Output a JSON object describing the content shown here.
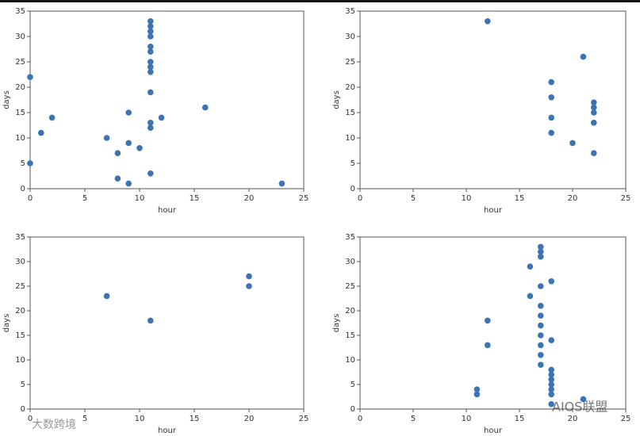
{
  "chart_data": [
    {
      "type": "scatter",
      "xlabel": "hour",
      "ylabel": "days",
      "color": "#3b73b3",
      "x": [
        0,
        0,
        1,
        2,
        7,
        8,
        8,
        9,
        9,
        9,
        10,
        11,
        11,
        11,
        11,
        11,
        11,
        11,
        11,
        11,
        11,
        11,
        11,
        11,
        12,
        16,
        23
      ],
      "values": [
        22,
        5,
        11,
        14,
        10,
        7,
        2,
        15,
        9,
        1,
        8,
        33,
        32,
        31,
        30,
        28,
        27,
        25,
        24,
        23,
        19,
        13,
        12,
        3,
        14,
        16,
        1
      ],
      "xlim": [
        0,
        25
      ],
      "ylim": [
        0,
        35
      ],
      "xticks": [
        0,
        5,
        10,
        15,
        20,
        25
      ],
      "yticks": [
        0,
        5,
        10,
        15,
        20,
        25,
        30,
        35
      ]
    },
    {
      "type": "scatter",
      "xlabel": "hour",
      "ylabel": "days",
      "color": "#3b73b3",
      "x": [
        12,
        18,
        18,
        18,
        18,
        20,
        21,
        22,
        22,
        22,
        22,
        22
      ],
      "values": [
        33,
        21,
        18,
        14,
        11,
        9,
        26,
        17,
        16,
        15,
        13,
        7
      ],
      "xlim": [
        0,
        25
      ],
      "ylim": [
        0,
        35
      ],
      "xticks": [
        0,
        5,
        10,
        15,
        20,
        25
      ],
      "yticks": [
        0,
        5,
        10,
        15,
        20,
        25,
        30,
        35
      ]
    },
    {
      "type": "scatter",
      "xlabel": "hour",
      "ylabel": "days",
      "color": "#3b73b3",
      "x": [
        7,
        11,
        20,
        20
      ],
      "values": [
        23,
        18,
        27,
        25
      ],
      "xlim": [
        0,
        25
      ],
      "ylim": [
        0,
        35
      ],
      "xticks": [
        0,
        5,
        10,
        15,
        20,
        25
      ],
      "yticks": [
        0,
        5,
        10,
        15,
        20,
        25,
        30,
        35
      ]
    },
    {
      "type": "scatter",
      "xlabel": "hour",
      "ylabel": "days",
      "color": "#3b73b3",
      "x": [
        11,
        11,
        12,
        12,
        16,
        16,
        17,
        17,
        17,
        17,
        17,
        17,
        17,
        17,
        17,
        17,
        17,
        18,
        18,
        18,
        18,
        18,
        18,
        18,
        18,
        18,
        21
      ],
      "values": [
        4,
        3,
        18,
        13,
        29,
        23,
        33,
        32,
        31,
        25,
        21,
        19,
        17,
        15,
        13,
        11,
        9,
        26,
        14,
        8,
        7,
        6,
        5,
        4,
        3,
        1,
        2
      ],
      "xlim": [
        0,
        25
      ],
      "ylim": [
        0,
        35
      ],
      "xticks": [
        0,
        5,
        10,
        15,
        20,
        25
      ],
      "yticks": [
        0,
        5,
        10,
        15,
        20,
        25,
        30,
        35
      ]
    }
  ],
  "watermarks": [
    "大数跨境",
    "AIOS联盟"
  ]
}
